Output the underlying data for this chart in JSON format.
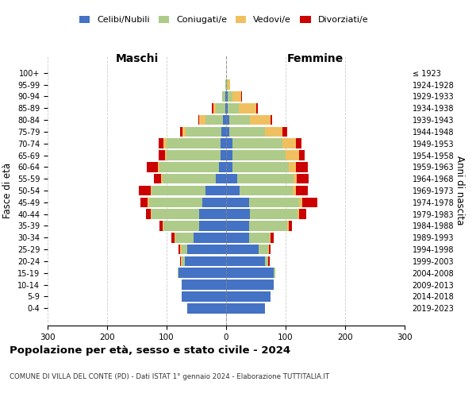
{
  "age_groups": [
    "0-4",
    "5-9",
    "10-14",
    "15-19",
    "20-24",
    "25-29",
    "30-34",
    "35-39",
    "40-44",
    "45-49",
    "50-54",
    "55-59",
    "60-64",
    "65-69",
    "70-74",
    "75-79",
    "80-84",
    "85-89",
    "90-94",
    "95-99",
    "100+"
  ],
  "birth_years": [
    "2019-2023",
    "2014-2018",
    "2009-2013",
    "2004-2008",
    "1999-2003",
    "1994-1998",
    "1989-1993",
    "1984-1988",
    "1979-1983",
    "1974-1978",
    "1969-1973",
    "1964-1968",
    "1959-1963",
    "1954-1958",
    "1949-1953",
    "1944-1948",
    "1939-1943",
    "1934-1938",
    "1929-1933",
    "1924-1928",
    "≤ 1923"
  ],
  "maschi": {
    "celibi": [
      65,
      75,
      75,
      80,
      70,
      65,
      55,
      45,
      45,
      40,
      35,
      17,
      12,
      10,
      10,
      8,
      5,
      2,
      2,
      0,
      0
    ],
    "coniugati": [
      0,
      0,
      0,
      2,
      5,
      10,
      30,
      60,
      80,
      90,
      90,
      90,
      100,
      90,
      90,
      60,
      30,
      15,
      5,
      2,
      0
    ],
    "vedovi": [
      0,
      0,
      0,
      0,
      1,
      2,
      2,
      2,
      2,
      2,
      2,
      2,
      3,
      3,
      5,
      5,
      10,
      5,
      0,
      0,
      0
    ],
    "divorziati": [
      0,
      0,
      0,
      0,
      2,
      3,
      5,
      5,
      8,
      12,
      20,
      12,
      18,
      10,
      8,
      5,
      2,
      2,
      0,
      0,
      0
    ]
  },
  "femmine": {
    "nubili": [
      65,
      75,
      80,
      80,
      65,
      55,
      38,
      38,
      40,
      38,
      22,
      18,
      10,
      10,
      10,
      5,
      5,
      3,
      2,
      0,
      0
    ],
    "coniugate": [
      0,
      0,
      0,
      2,
      5,
      15,
      35,
      65,
      80,
      85,
      90,
      95,
      95,
      90,
      85,
      60,
      35,
      18,
      8,
      2,
      0
    ],
    "vedove": [
      0,
      0,
      0,
      0,
      1,
      2,
      2,
      2,
      2,
      5,
      5,
      5,
      12,
      22,
      22,
      30,
      35,
      30,
      15,
      5,
      0
    ],
    "divorziate": [
      0,
      0,
      0,
      0,
      2,
      3,
      5,
      5,
      12,
      25,
      20,
      20,
      20,
      10,
      10,
      8,
      2,
      2,
      2,
      0,
      0
    ]
  },
  "colors": {
    "celibi": "#4472C4",
    "coniugati": "#AECB8A",
    "vedovi": "#F0C060",
    "divorziati": "#CC0000"
  },
  "legend_labels": [
    "Celibi/Nubili",
    "Coniugati/e",
    "Vedovi/e",
    "Divorziati/e"
  ],
  "title": "Popolazione per età, sesso e stato civile - 2024",
  "subtitle": "COMUNE DI VILLA DEL CONTE (PD) - Dati ISTAT 1° gennaio 2024 - Elaborazione TUTTITALIA.IT",
  "xlabel_left": "Maschi",
  "xlabel_right": "Femmine",
  "ylabel_left": "Fasce di età",
  "ylabel_right": "Anni di nascita",
  "xlim": 300
}
